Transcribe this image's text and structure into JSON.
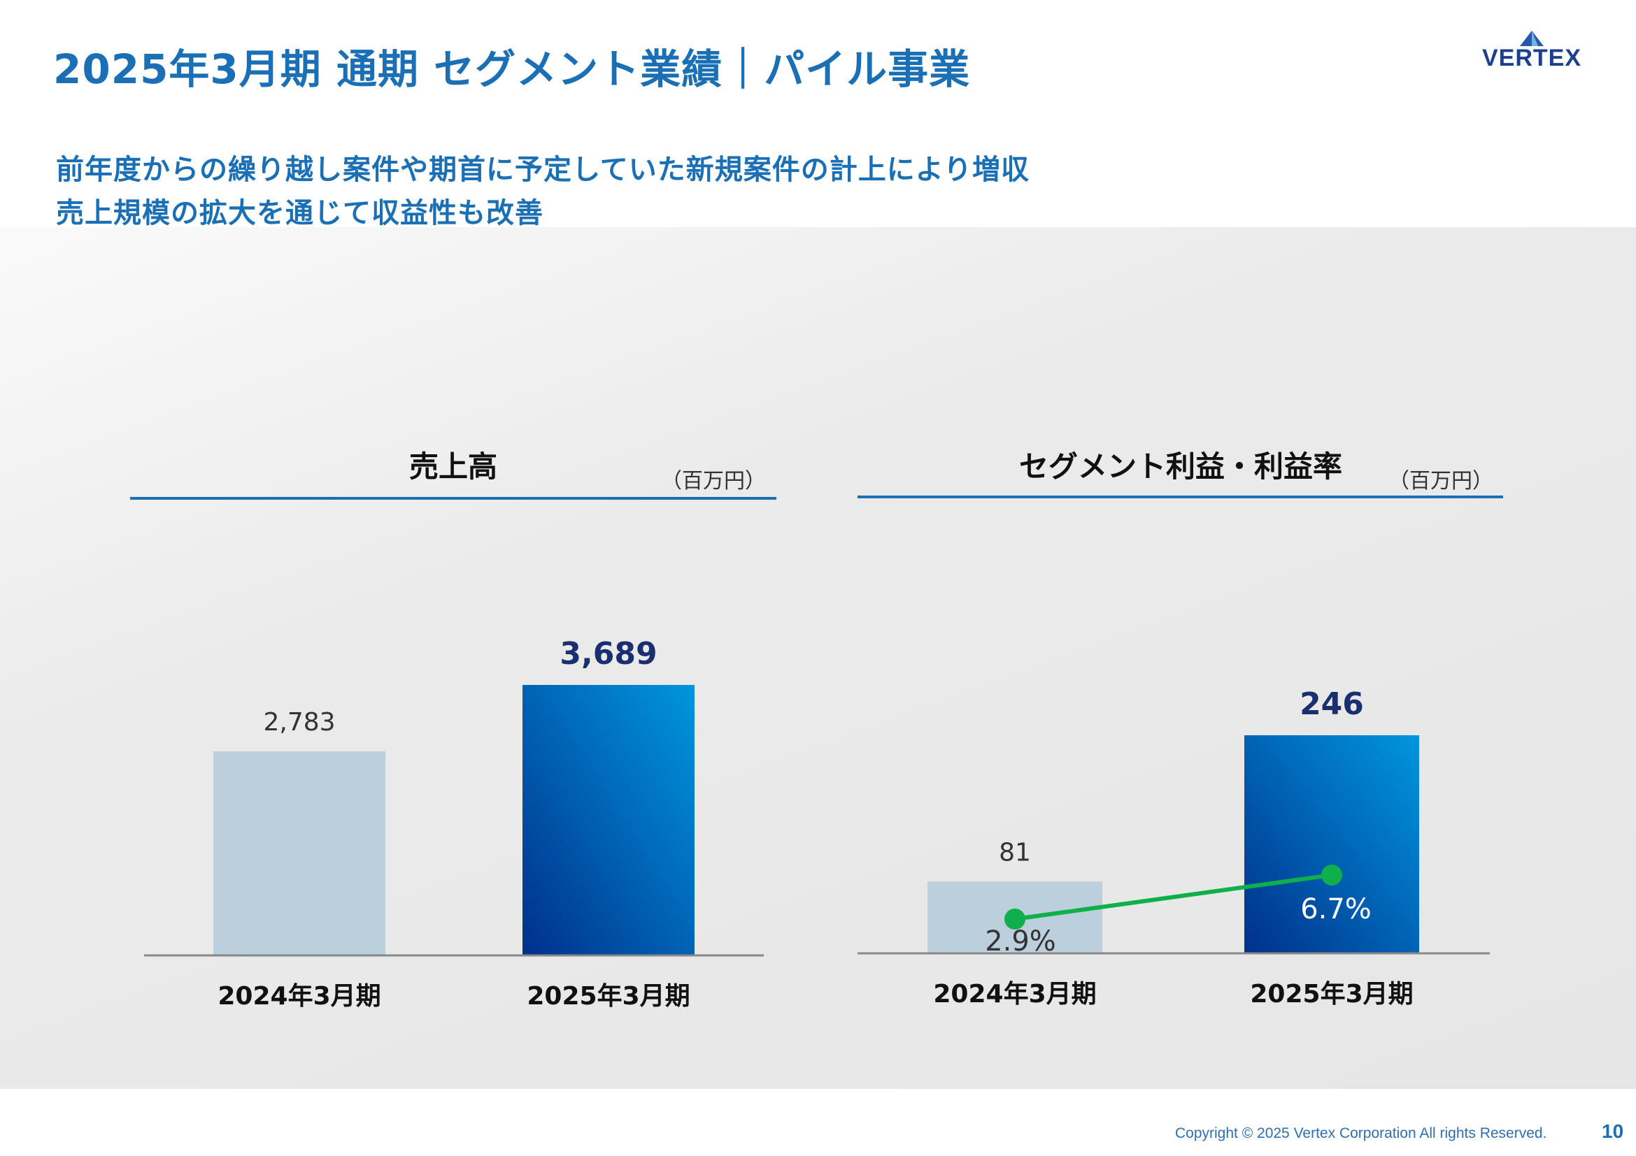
{
  "page": {
    "title": "2025年3月期 通期 セグメント業績｜パイル事業",
    "lead_lines": [
      "前年度からの繰り越し案件や期首に予定していた新規案件の計上により増収",
      "売上規模の拡大を通じて収益性も改善"
    ],
    "logo_text": "VERTEX",
    "copyright": "Copyright © 2025 Vertex Corporation All rights Reserved.",
    "page_number": "10"
  },
  "colors": {
    "title": "#1a6fb5",
    "bar_prior": "#bccfdc",
    "bar_current_top": "#0096dd",
    "bar_current_bottom": "#00308c",
    "value_current": "#1a2f6e",
    "line_margin": "#0fb04b"
  },
  "chart_data": [
    {
      "type": "bar",
      "title": "売上高",
      "unit": "（百万円）",
      "categories": [
        "2024年3月期",
        "2025年3月期"
      ],
      "values": [
        2783,
        3689
      ],
      "value_labels": [
        "2,783",
        "3,689"
      ]
    },
    {
      "type": "bar",
      "title": "セグメント利益・利益率",
      "unit": "（百万円）",
      "categories": [
        "2024年3月期",
        "2025年3月期"
      ],
      "values": [
        81,
        246
      ],
      "value_labels": [
        "81",
        "246"
      ],
      "line_series": {
        "values": [
          2.9,
          6.7
        ],
        "labels": [
          "2.9%",
          "6.7%"
        ]
      }
    }
  ]
}
